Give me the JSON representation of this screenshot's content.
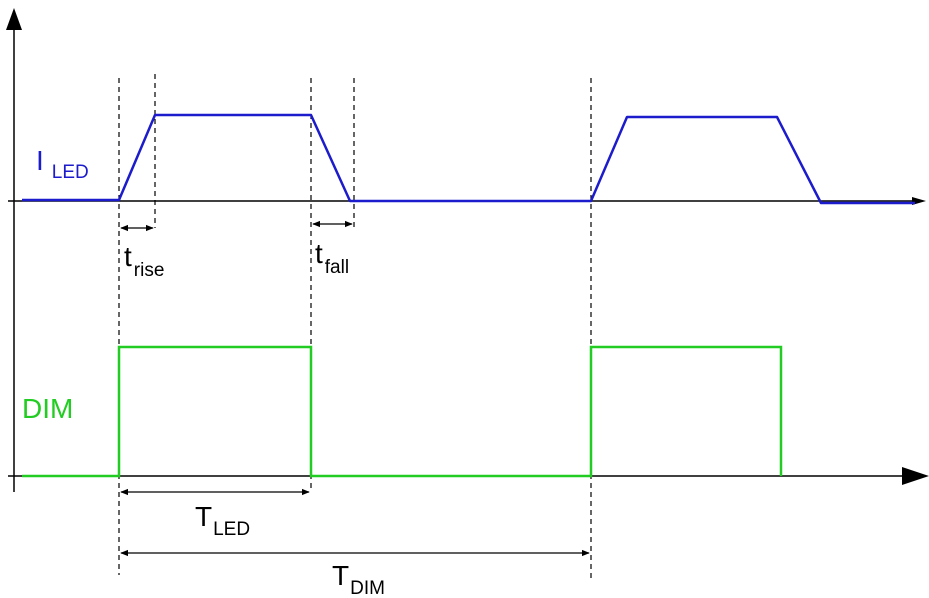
{
  "colors": {
    "led_current": "#1c1ccc",
    "dim_signal": "#22cc22",
    "axes": "#000000"
  },
  "labels": {
    "i_led": {
      "main": "I",
      "sub": "LED"
    },
    "dim": "DIM",
    "t_rise": {
      "main": "t",
      "sub": "rise"
    },
    "t_fall": {
      "main": "t",
      "sub": "fall"
    },
    "t_led": {
      "main": "T",
      "sub": "LED"
    },
    "t_dim": {
      "main": "T",
      "sub": "DIM"
    }
  }
}
